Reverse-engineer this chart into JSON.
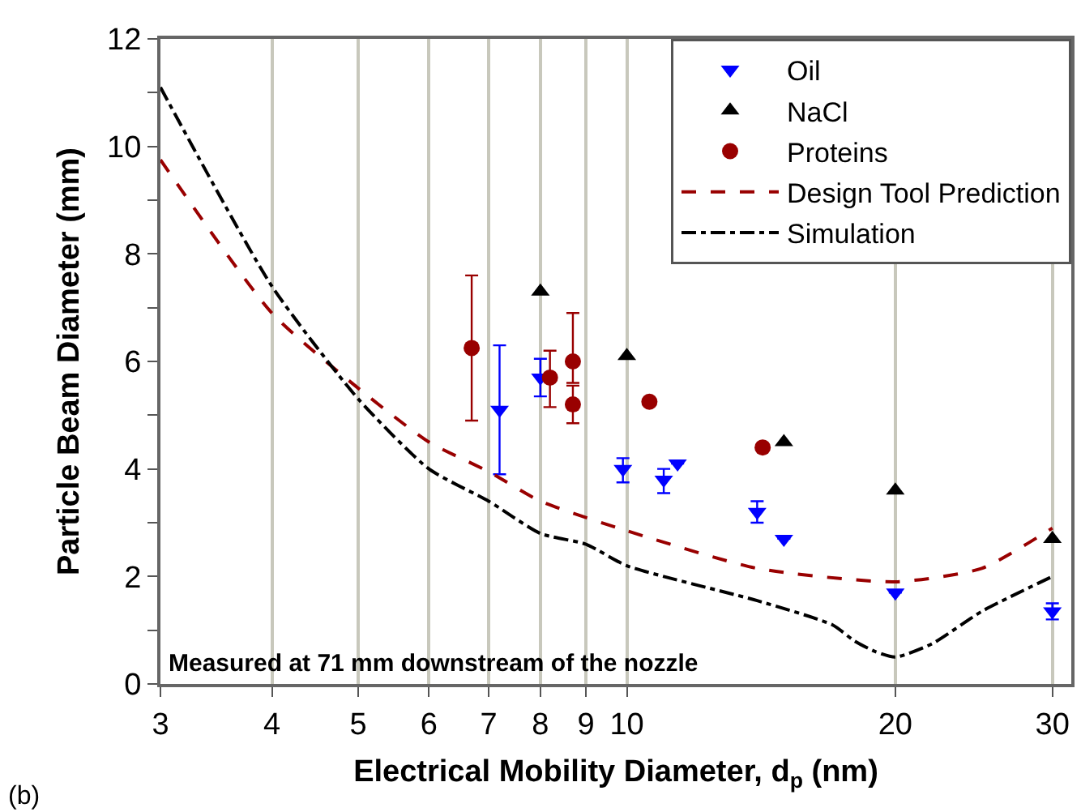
{
  "chart_data": {
    "type": "scatter",
    "xlabel": "Electrical Mobility Diameter, d$_{p}$ (nm)",
    "ylabel": "Particle Beam Diameter (mm)",
    "log": "x",
    "xlim": [
      3,
      31.5
    ],
    "xticks": [
      3,
      4,
      5,
      6,
      7,
      8,
      9,
      10,
      20,
      30
    ],
    "ylim": [
      0,
      12
    ],
    "yticks": [
      0,
      {
        "value": 1,
        "label": null
      },
      2,
      {
        "value": 3,
        "label": null
      },
      4,
      {
        "value": 5,
        "label": null
      },
      6,
      {
        "value": 7,
        "label": null
      },
      8,
      {
        "value": 9,
        "label": null
      },
      10,
      {
        "value": 11,
        "label": null
      },
      12
    ],
    "grid": "x",
    "legend": "top right",
    "series": [
      {
        "name": "Oil",
        "marker": "triangle-down",
        "color": "#0000ff",
        "x": [
          7.2,
          8,
          9.9,
          11,
          11.4,
          14,
          15,
          20,
          30
        ],
        "values": [
          5.1,
          5.7,
          4,
          3.8,
          4.1,
          3.2,
          2.7,
          1.7,
          1.35
        ],
        "errors": [
          [
            3.9,
            6.3
          ],
          [
            5.35,
            6.05
          ],
          [
            3.75,
            4.2
          ],
          [
            3.55,
            4
          ],
          null,
          [
            3,
            3.4
          ],
          null,
          null,
          [
            1.2,
            1.5
          ]
        ]
      },
      {
        "name": "NaCl",
        "marker": "triangle",
        "color": "#000000",
        "x": [
          8,
          10,
          15,
          20,
          30
        ],
        "values": [
          7.3,
          6.1,
          4.5,
          3.6,
          2.7
        ]
      },
      {
        "name": "Proteins",
        "marker": "circle",
        "color": "#990000",
        "x": [
          6.7,
          8.2,
          8.7,
          8.7,
          10.6,
          14.2
        ],
        "values": [
          6.25,
          5.7,
          6,
          5.2,
          5.25,
          4.4
        ],
        "errors": [
          [
            4.9,
            7.6
          ],
          [
            5.15,
            6.2
          ],
          [
            5.6,
            6.9
          ],
          [
            4.85,
            5.55
          ],
          null,
          null
        ]
      },
      {
        "name": "Design Tool Prediction",
        "type": "line",
        "line_style": "dashed",
        "color": "#990000",
        "x": [
          3,
          4,
          5,
          6,
          7,
          8,
          10,
          14,
          20,
          25,
          30
        ],
        "values": [
          9.75,
          6.9,
          5.5,
          4.5,
          3.95,
          3.4,
          2.85,
          2.15,
          1.9,
          2.15,
          2.9
        ]
      },
      {
        "name": "Simulation",
        "type": "line",
        "line_style": "dashdot",
        "color": "#000000",
        "x": [
          3,
          4,
          5,
          6,
          7,
          8,
          9,
          10,
          14,
          17,
          18,
          19,
          20,
          22,
          25,
          30
        ],
        "values": [
          11.1,
          7.4,
          5.3,
          4,
          3.4,
          2.8,
          2.6,
          2.2,
          1.55,
          1.1,
          0.8,
          0.6,
          0.5,
          0.75,
          1.35,
          2
        ]
      }
    ],
    "annotations": [
      "Measured at 71 mm downstream of the nozzle",
      "(b)"
    ]
  }
}
